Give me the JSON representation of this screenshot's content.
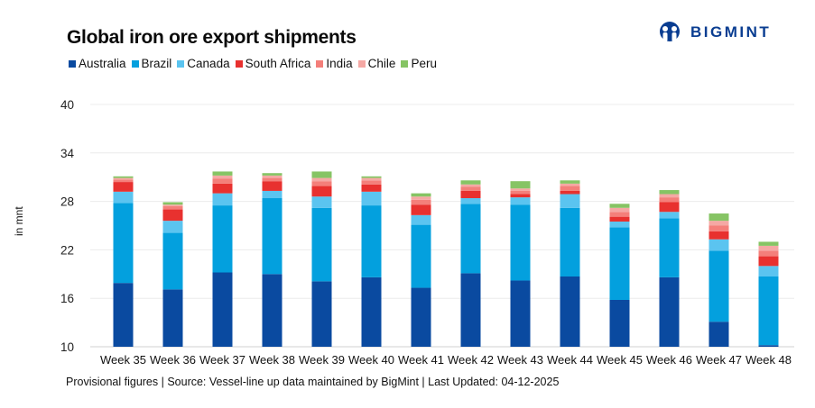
{
  "header": {
    "title": "Global iron ore export shipments",
    "brand": "BIGMINT"
  },
  "footer": {
    "note": "Provisional figures | Source: Vessel-line up data maintained by BigMint | Last Updated: 04-12-2025"
  },
  "chart_data": {
    "type": "bar",
    "stacked": true,
    "title": "Global iron ore export shipments",
    "xlabel": "",
    "ylabel": "in mnt",
    "ylim": [
      10,
      40
    ],
    "yticks": [
      10,
      16,
      22,
      28,
      34,
      40
    ],
    "grid": true,
    "legend_position": "top-left",
    "categories": [
      "Week 35",
      "Week 36",
      "Week 37",
      "Week 38",
      "Week 39",
      "Week 40",
      "Week 41",
      "Week 42",
      "Week 43",
      "Week 44",
      "Week 45",
      "Week 46",
      "Week 47",
      "Week 48"
    ],
    "series": [
      {
        "name": "Australia",
        "color": "#0a4aa0",
        "values": [
          17.9,
          17.1,
          19.2,
          19.0,
          18.1,
          18.6,
          17.3,
          19.1,
          18.2,
          18.7,
          15.8,
          18.6,
          13.1,
          10.2
        ]
      },
      {
        "name": "Brazil",
        "color": "#03a0de",
        "values": [
          9.9,
          7.0,
          8.3,
          9.4,
          9.1,
          8.9,
          7.8,
          8.6,
          9.4,
          8.5,
          9.0,
          7.3,
          8.8,
          8.5
        ]
      },
      {
        "name": "Canada",
        "color": "#5bc4f0",
        "values": [
          1.4,
          1.5,
          1.5,
          0.9,
          1.4,
          1.7,
          1.2,
          0.7,
          0.9,
          1.7,
          0.7,
          0.8,
          1.4,
          1.3
        ]
      },
      {
        "name": "South Africa",
        "color": "#e8312f",
        "values": [
          1.2,
          1.4,
          1.2,
          1.2,
          1.3,
          0.9,
          1.3,
          0.9,
          0.4,
          0.4,
          0.6,
          1.2,
          1.0,
          1.2
        ]
      },
      {
        "name": "India",
        "color": "#f47f7a",
        "values": [
          0.3,
          0.4,
          0.6,
          0.4,
          0.6,
          0.5,
          0.6,
          0.5,
          0.4,
          0.6,
          0.6,
          0.6,
          0.7,
          0.7
        ]
      },
      {
        "name": "Chile",
        "color": "#f5a8a4",
        "values": [
          0.2,
          0.2,
          0.4,
          0.3,
          0.4,
          0.3,
          0.4,
          0.3,
          0.3,
          0.3,
          0.5,
          0.4,
          0.6,
          0.6
        ]
      },
      {
        "name": "Peru",
        "color": "#86c464",
        "values": [
          0.2,
          0.3,
          0.5,
          0.3,
          0.8,
          0.2,
          0.4,
          0.5,
          0.9,
          0.4,
          0.5,
          0.5,
          0.9,
          0.5
        ]
      }
    ]
  }
}
